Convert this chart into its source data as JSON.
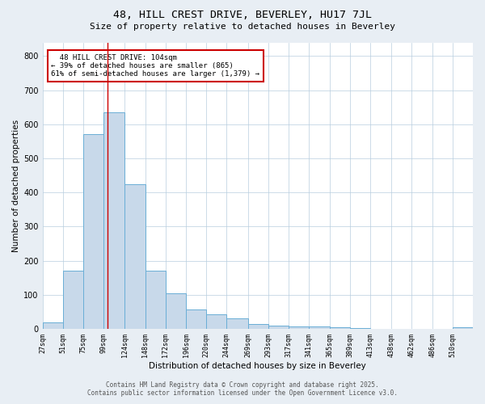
{
  "title": "48, HILL CREST DRIVE, BEVERLEY, HU17 7JL",
  "subtitle": "Size of property relative to detached houses in Beverley",
  "xlabel": "Distribution of detached houses by size in Beverley",
  "ylabel": "Number of detached properties",
  "bar_color": "#c8d9ea",
  "bar_edge_color": "#6aaed6",
  "bar_heights": [
    20,
    170,
    570,
    635,
    425,
    170,
    105,
    57,
    42,
    30,
    15,
    10,
    8,
    7,
    5,
    3,
    1,
    1,
    1,
    1,
    6
  ],
  "bin_labels": [
    "27sqm",
    "51sqm",
    "75sqm",
    "99sqm",
    "124sqm",
    "148sqm",
    "172sqm",
    "196sqm",
    "220sqm",
    "244sqm",
    "269sqm",
    "293sqm",
    "317sqm",
    "341sqm",
    "365sqm",
    "389sqm",
    "413sqm",
    "438sqm",
    "462sqm",
    "486sqm",
    "510sqm"
  ],
  "bin_edges": [
    27,
    51,
    75,
    99,
    124,
    148,
    172,
    196,
    220,
    244,
    269,
    293,
    317,
    341,
    365,
    389,
    413,
    438,
    462,
    486,
    510
  ],
  "ylim": [
    0,
    840
  ],
  "yticks": [
    0,
    100,
    200,
    300,
    400,
    500,
    600,
    700,
    800
  ],
  "property_size": 104,
  "vline_color": "#cc0000",
  "annotation_text": "  48 HILL CREST DRIVE: 104sqm  \n← 39% of detached houses are smaller (865)\n61% of semi-detached houses are larger (1,379) →",
  "annotation_box_color": "#ffffff",
  "annotation_box_edge": "#cc0000",
  "footer_line1": "Contains HM Land Registry data © Crown copyright and database right 2025.",
  "footer_line2": "Contains public sector information licensed under the Open Government Licence v3.0.",
  "background_color": "#e8eef4",
  "plot_background_color": "#ffffff",
  "grid_color": "#b8cede"
}
